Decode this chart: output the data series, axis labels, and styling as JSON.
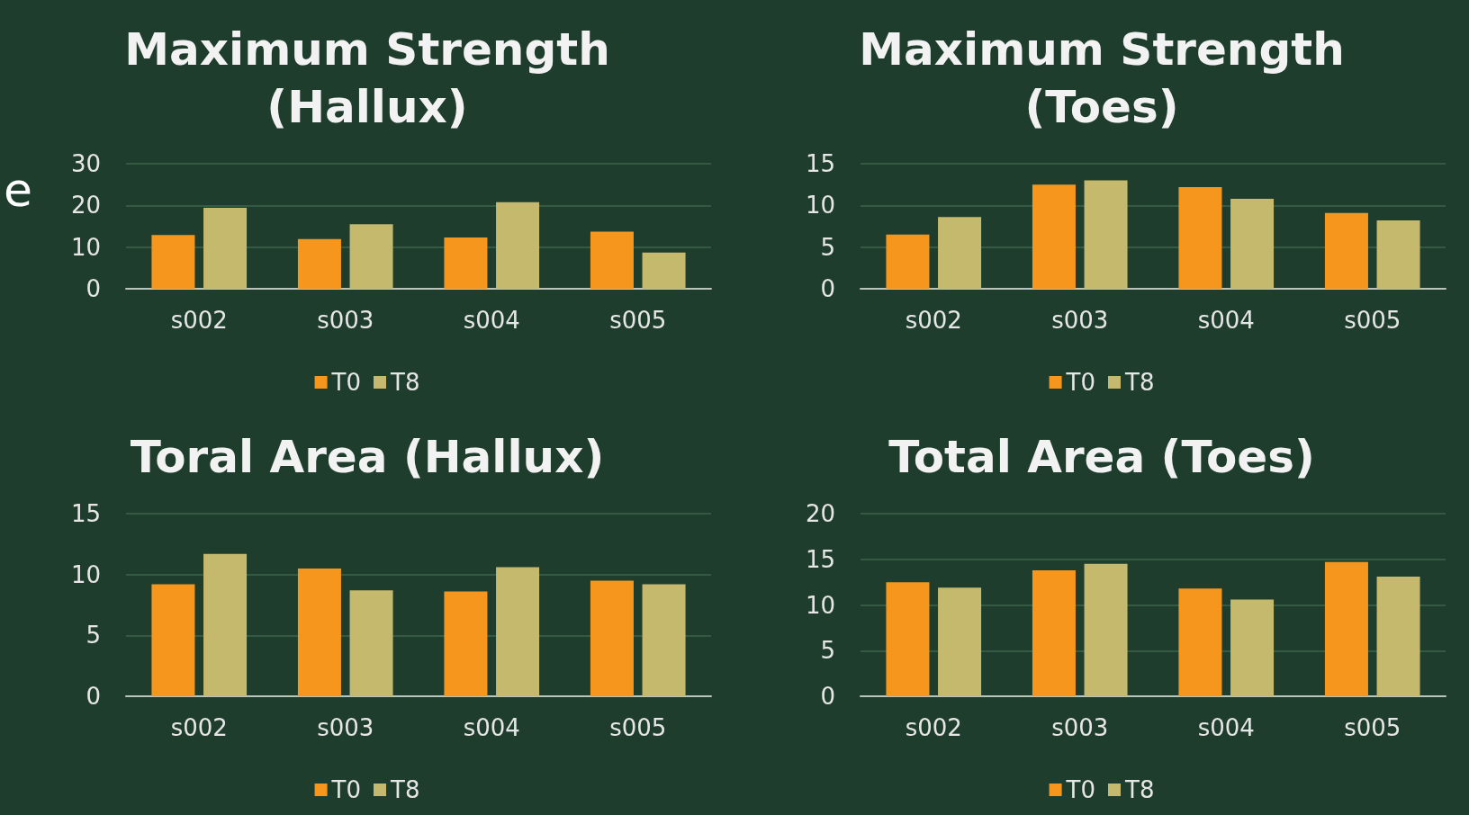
{
  "chart_data": [
    {
      "type": "bar",
      "title": "Maximum Strength\n(Hallux)",
      "categories": [
        "s002",
        "s003",
        "s004",
        "s005"
      ],
      "series": [
        {
          "name": "T0",
          "color": "#f7961c",
          "values": [
            12.9,
            11.9,
            12.3,
            13.7
          ]
        },
        {
          "name": "T8",
          "color": "#c4b96c",
          "values": [
            19.4,
            15.5,
            20.8,
            8.7
          ]
        }
      ],
      "ylim": [
        0,
        30
      ],
      "yticks": [
        0,
        10,
        20,
        30
      ],
      "grid": "y",
      "legend": "bottom",
      "annotations": [
        "e"
      ]
    },
    {
      "type": "bar",
      "title": "Maximum Strength\n(Toes)",
      "categories": [
        "s002",
        "s003",
        "s004",
        "s005"
      ],
      "series": [
        {
          "name": "T0",
          "color": "#f7961c",
          "values": [
            6.5,
            12.5,
            12.2,
            9.1
          ]
        },
        {
          "name": "T8",
          "color": "#c4b96c",
          "values": [
            8.6,
            13.0,
            10.8,
            8.2
          ]
        }
      ],
      "ylim": [
        0,
        15
      ],
      "yticks": [
        0,
        5,
        10,
        15
      ],
      "grid": "y",
      "legend": "bottom"
    },
    {
      "type": "bar",
      "title": "Toral Area (Hallux)",
      "categories": [
        "s002",
        "s003",
        "s004",
        "s005"
      ],
      "series": [
        {
          "name": "T0",
          "color": "#f7961c",
          "values": [
            9.2,
            10.5,
            8.6,
            9.5
          ]
        },
        {
          "name": "T8",
          "color": "#c4b96c",
          "values": [
            11.7,
            8.7,
            10.6,
            9.2
          ]
        }
      ],
      "ylim": [
        0,
        15
      ],
      "yticks": [
        0,
        5,
        10,
        15
      ],
      "grid": "y",
      "legend": "bottom"
    },
    {
      "type": "bar",
      "title": "Total Area (Toes)",
      "categories": [
        "s002",
        "s003",
        "s004",
        "s005"
      ],
      "series": [
        {
          "name": "T0",
          "color": "#f7961c",
          "values": [
            12.5,
            13.8,
            11.8,
            14.7
          ]
        },
        {
          "name": "T8",
          "color": "#c4b96c",
          "values": [
            11.9,
            14.5,
            10.6,
            13.1
          ]
        }
      ],
      "ylim": [
        0,
        20
      ],
      "yticks": [
        0,
        5,
        10,
        15,
        20
      ],
      "grid": "y",
      "legend": "bottom"
    }
  ]
}
